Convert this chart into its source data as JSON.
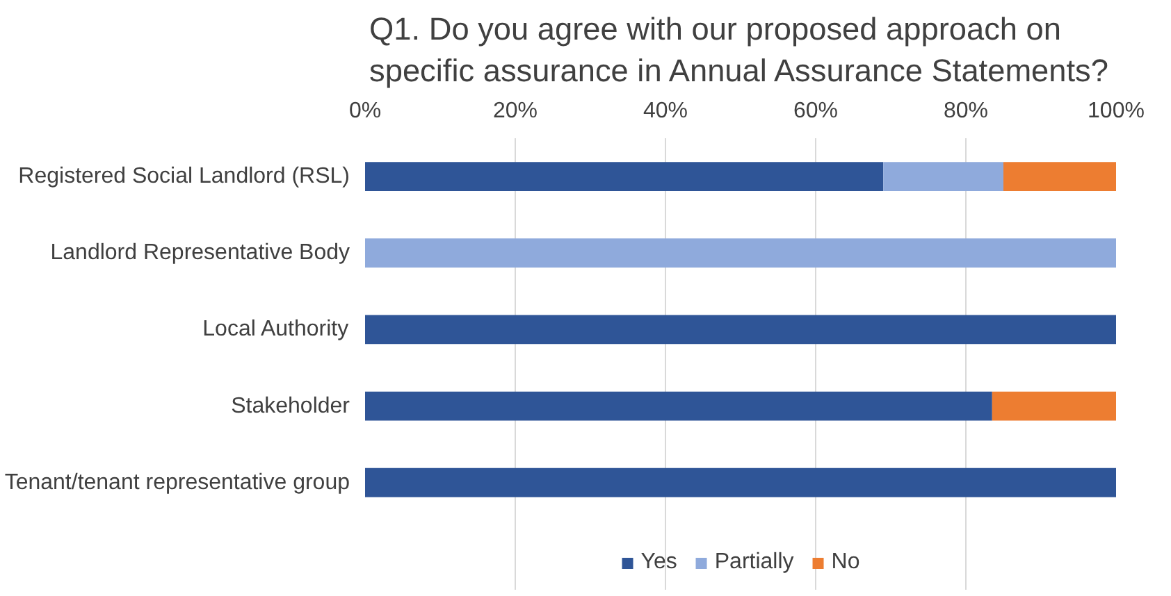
{
  "chart_data": {
    "type": "bar",
    "orientation": "horizontal",
    "stacked": true,
    "title": "Q1. Do you agree with our proposed approach on\nspecific assurance in Annual Assurance Statements?",
    "categories": [
      "Registered Social Landlord (RSL)",
      "Landlord Representative Body",
      "Local Authority",
      "Stakeholder",
      "Tenant/tenant representative group"
    ],
    "series": [
      {
        "name": "Yes",
        "color": "#2f5597",
        "values": [
          69,
          0,
          100,
          83.5,
          100
        ]
      },
      {
        "name": "Partially",
        "color": "#8faadc",
        "values": [
          16,
          100,
          0,
          0,
          0
        ]
      },
      {
        "name": "No",
        "color": "#ed7d31",
        "values": [
          15,
          0,
          0,
          16.5,
          0
        ]
      }
    ],
    "xlim": [
      0,
      100
    ],
    "xticks": [
      {
        "value": 0,
        "label": "0%"
      },
      {
        "value": 20,
        "label": "20%"
      },
      {
        "value": 40,
        "label": "40%"
      },
      {
        "value": 60,
        "label": "60%"
      },
      {
        "value": 80,
        "label": "80%"
      },
      {
        "value": 100,
        "label": "100%"
      }
    ],
    "grid": "x",
    "legend": "bottom"
  }
}
